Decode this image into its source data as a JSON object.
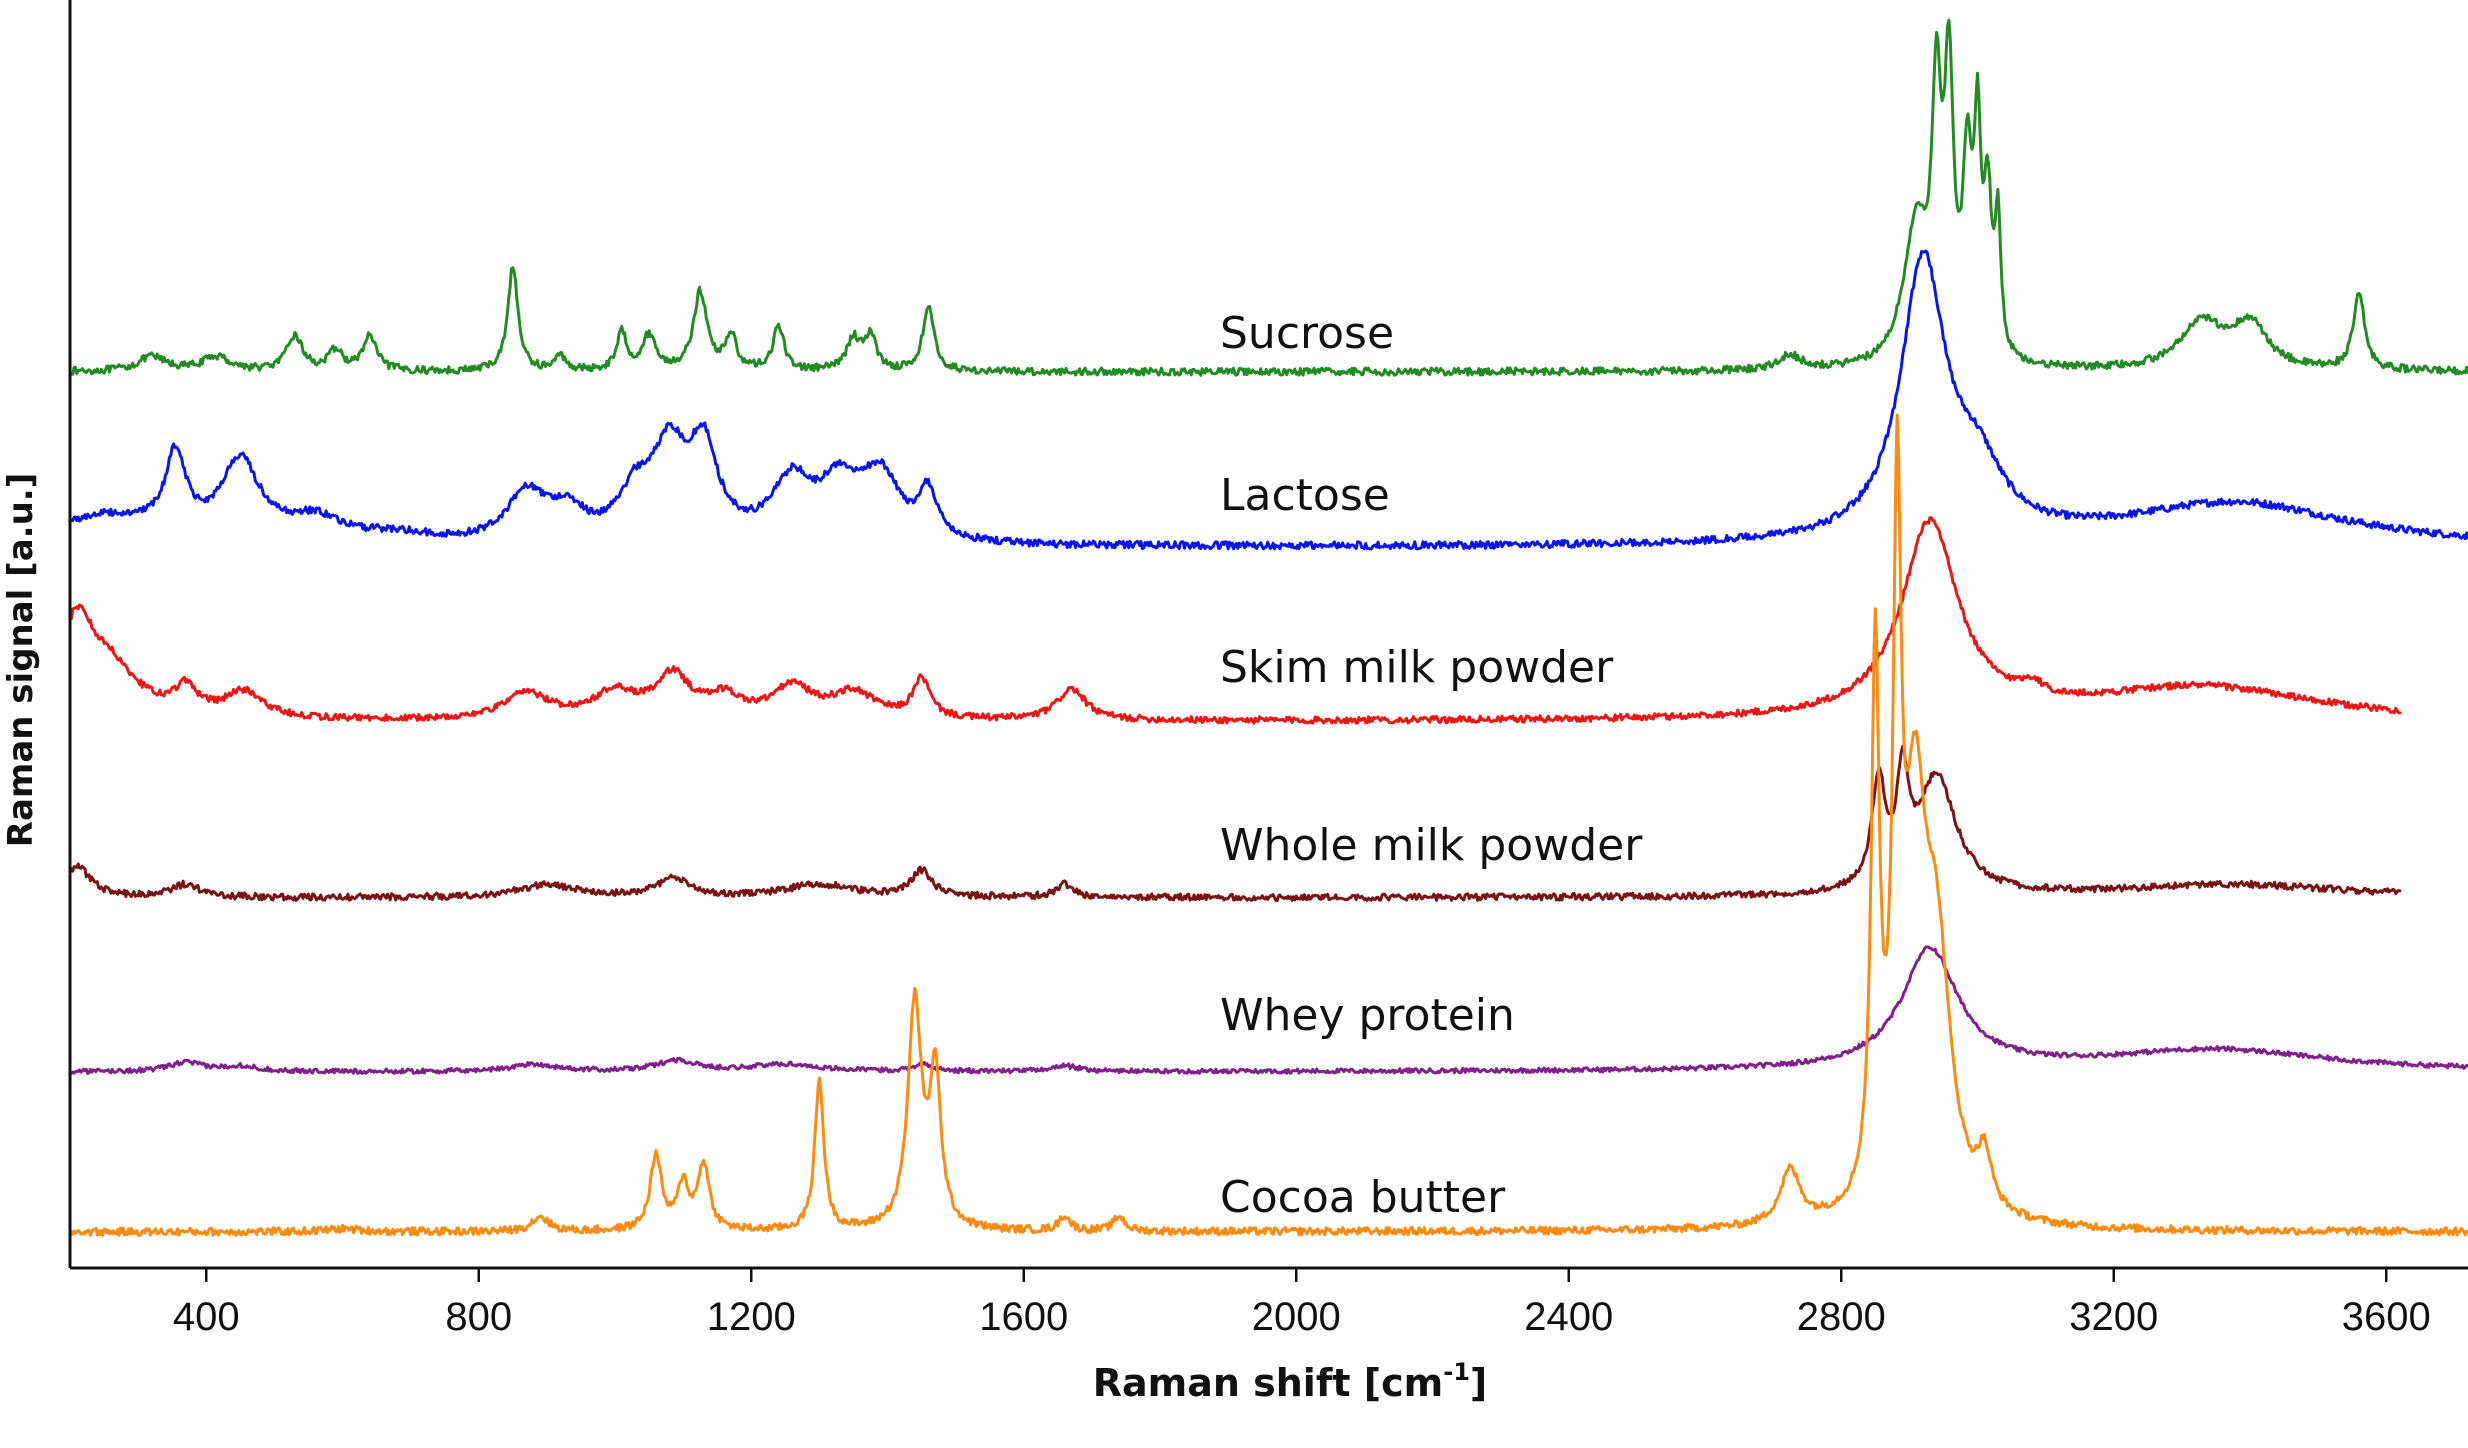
{
  "chart_data": {
    "type": "line",
    "title": "",
    "xlabel": "Raman shift [cm-1]",
    "xlabel_main": "Raman shift [cm",
    "xlabel_sup": "-1",
    "xlabel_close": "]",
    "ylabel": "Raman signal [a.u.]",
    "xlim": [
      200,
      3720
    ],
    "y_ticks_shown": false,
    "grid": false,
    "legend": "inline labels",
    "x_ticks": [
      400,
      800,
      1200,
      1600,
      2000,
      2400,
      2800,
      3200,
      3600
    ],
    "series": [
      {
        "name": "Sucrose",
        "color": "#228b22",
        "baseline": 0,
        "x_end": 3720,
        "peaks": [
          [
            320,
            0.05,
            25
          ],
          [
            415,
            0.05,
            25
          ],
          [
            530,
            0.12,
            14
          ],
          [
            590,
            0.07,
            12
          ],
          [
            640,
            0.12,
            12
          ],
          [
            850,
            0.36,
            9
          ],
          [
            920,
            0.05,
            10
          ],
          [
            1010,
            0.13,
            9
          ],
          [
            1050,
            0.12,
            12
          ],
          [
            1125,
            0.27,
            12
          ],
          [
            1170,
            0.12,
            10
          ],
          [
            1240,
            0.15,
            10
          ],
          [
            1350,
            0.11,
            12
          ],
          [
            1375,
            0.12,
            10
          ],
          [
            1460,
            0.22,
            10
          ],
          [
            2725,
            0.05,
            20
          ],
          [
            2910,
            0.48,
            22
          ],
          [
            2940,
            0.82,
            8
          ],
          [
            2958,
            0.92,
            8
          ],
          [
            2985,
            0.62,
            8
          ],
          [
            3000,
            0.7,
            6
          ],
          [
            3015,
            0.52,
            7
          ],
          [
            3030,
            0.45,
            5
          ],
          [
            3330,
            0.16,
            40
          ],
          [
            3400,
            0.15,
            30
          ],
          [
            3560,
            0.26,
            10
          ]
        ]
      },
      {
        "name": "Lactose",
        "color": "#0a14ee",
        "baseline": 0,
        "x_end": 3720,
        "peaks": [
          [
            250,
            0.1,
            100
          ],
          [
            355,
            0.27,
            18
          ],
          [
            450,
            0.27,
            35
          ],
          [
            560,
            0.08,
            50
          ],
          [
            680,
            0.03,
            60
          ],
          [
            870,
            0.17,
            35
          ],
          [
            930,
            0.1,
            30
          ],
          [
            1080,
            0.3,
            30
          ],
          [
            1130,
            0.3,
            25
          ],
          [
            1030,
            0.15,
            30
          ],
          [
            1260,
            0.2,
            35
          ],
          [
            1330,
            0.18,
            35
          ],
          [
            1390,
            0.22,
            35
          ],
          [
            1460,
            0.16,
            15
          ],
          [
            2920,
            0.95,
            40
          ],
          [
            3000,
            0.2,
            45
          ],
          [
            3380,
            0.15,
            200
          ]
        ]
      },
      {
        "name": "Skim milk powder",
        "color": "#ee1515",
        "baseline": 0,
        "x_end": 3620,
        "peaks": [
          [
            210,
            0.35,
            30
          ],
          [
            260,
            0.18,
            50
          ],
          [
            370,
            0.1,
            20
          ],
          [
            455,
            0.1,
            35
          ],
          [
            870,
            0.1,
            40
          ],
          [
            1000,
            0.1,
            40
          ],
          [
            1085,
            0.16,
            30
          ],
          [
            1160,
            0.08,
            30
          ],
          [
            1260,
            0.12,
            35
          ],
          [
            1350,
            0.1,
            40
          ],
          [
            1450,
            0.15,
            15
          ],
          [
            1670,
            0.12,
            25
          ],
          [
            2930,
            0.75,
            50
          ],
          [
            3080,
            0.05,
            20
          ],
          [
            3330,
            0.13,
            200
          ]
        ]
      },
      {
        "name": "Whole milk powder",
        "color": "#7a1414",
        "baseline": 0,
        "x_end": 3620,
        "peaks": [
          [
            210,
            0.12,
            25
          ],
          [
            370,
            0.05,
            25
          ],
          [
            900,
            0.05,
            50
          ],
          [
            1085,
            0.07,
            30
          ],
          [
            1300,
            0.05,
            60
          ],
          [
            1450,
            0.1,
            18
          ],
          [
            1660,
            0.05,
            15
          ],
          [
            2855,
            0.4,
            12
          ],
          [
            2890,
            0.38,
            10
          ],
          [
            2940,
            0.45,
            35
          ],
          [
            3380,
            0.05,
            200
          ]
        ]
      },
      {
        "name": "Whey protein",
        "color": "#80208a",
        "baseline": 0,
        "x_end": 3720,
        "peaks": [
          [
            370,
            0.05,
            30
          ],
          [
            450,
            0.03,
            30
          ],
          [
            880,
            0.04,
            40
          ],
          [
            1090,
            0.06,
            35
          ],
          [
            1250,
            0.04,
            60
          ],
          [
            1450,
            0.04,
            15
          ],
          [
            1660,
            0.03,
            25
          ],
          [
            2930,
            0.67,
            50
          ],
          [
            3350,
            0.12,
            200
          ]
        ]
      },
      {
        "name": "Cocoa butter",
        "color": "#ff8a10",
        "baseline": 0,
        "x_end": 3720,
        "peaks": [
          [
            600,
            0.01,
            30
          ],
          [
            890,
            0.05,
            15
          ],
          [
            1060,
            0.25,
            10
          ],
          [
            1100,
            0.15,
            10
          ],
          [
            1130,
            0.22,
            10
          ],
          [
            1300,
            0.5,
            8
          ],
          [
            1440,
            0.75,
            12
          ],
          [
            1470,
            0.5,
            10
          ],
          [
            1660,
            0.05,
            10
          ],
          [
            1740,
            0.05,
            10
          ],
          [
            2725,
            0.18,
            18
          ],
          [
            2850,
            1.8,
            7
          ],
          [
            2882,
            2.06,
            7
          ],
          [
            2908,
            1.2,
            20
          ],
          [
            2940,
            0.8,
            25
          ],
          [
            3010,
            0.17,
            12
          ]
        ]
      }
    ]
  }
}
